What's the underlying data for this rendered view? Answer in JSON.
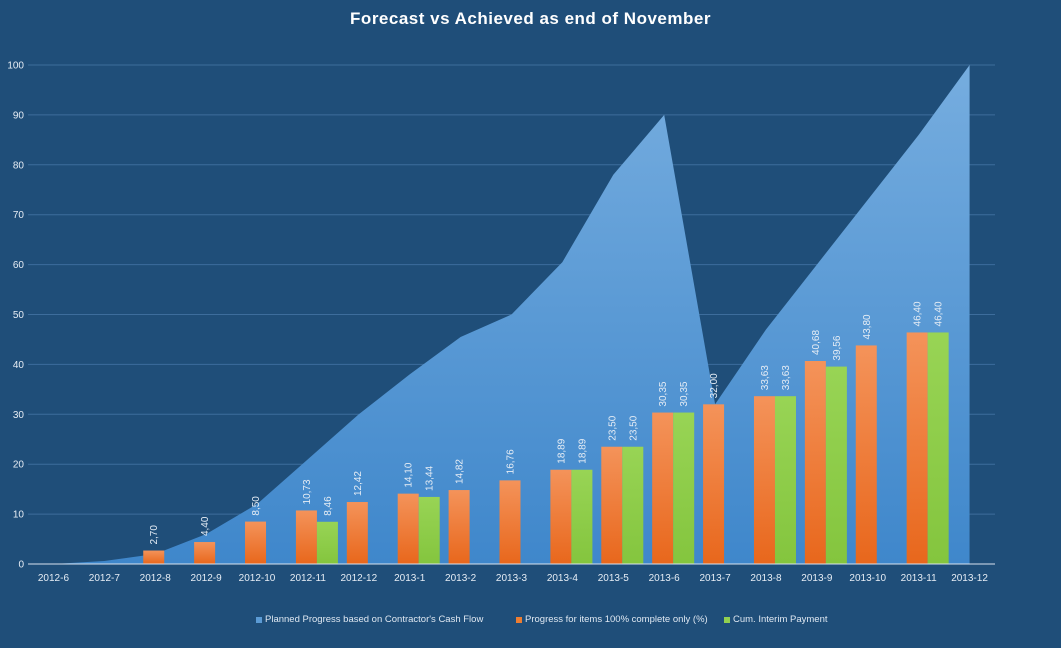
{
  "chart_data": {
    "type": "bar+area",
    "title": "Forecast vs Achieved as end of November",
    "xlabel": "",
    "ylabel": "",
    "ylim": [
      0,
      100
    ],
    "yticks": [
      0,
      10,
      20,
      30,
      40,
      50,
      60,
      70,
      80,
      90,
      100
    ],
    "grid": true,
    "legend_position": "bottom",
    "categories": [
      "2012-6",
      "2012-7",
      "2012-8",
      "2012-9",
      "2012-10",
      "2012-11",
      "2012-12",
      "2013-1",
      "2013-2",
      "2013-3",
      "2013-4",
      "2013-5",
      "2013-6",
      "2013-7",
      "2013-8",
      "2013-9",
      "2013-10",
      "2013-11",
      "2013-12"
    ],
    "series": [
      {
        "name": "Planned Progress based on Contractor's Cash Flow",
        "type": "area",
        "color": "#5b9bd5",
        "values": [
          0,
          0.6,
          2,
          6,
          12,
          21,
          30,
          38,
          45.5,
          50,
          60.5,
          78,
          90,
          32,
          47,
          60,
          73,
          86,
          100
        ]
      },
      {
        "name": "Progress for items 100% complete only (%)",
        "type": "bar",
        "color": "#ed7d31",
        "values": [
          null,
          null,
          2.7,
          4.4,
          8.5,
          10.73,
          12.42,
          14.1,
          14.82,
          16.76,
          18.89,
          23.5,
          30.35,
          32.0,
          33.63,
          40.68,
          43.8,
          46.4,
          null
        ],
        "labels": [
          null,
          null,
          "2,70",
          "4,40",
          "8,50",
          "10,73",
          "12,42",
          "14,10",
          "14,82",
          "16,76",
          "18,89",
          "23,50",
          "30,35",
          "32,00",
          "33,63",
          "40,68",
          "43,80",
          "46,40",
          null
        ]
      },
      {
        "name": "Cum. Interim Payment",
        "type": "bar",
        "color": "#92d050",
        "values": [
          null,
          null,
          null,
          null,
          null,
          8.46,
          null,
          13.44,
          null,
          null,
          18.89,
          23.5,
          30.35,
          null,
          33.63,
          39.56,
          null,
          46.4,
          null
        ],
        "labels": [
          null,
          null,
          null,
          null,
          null,
          "8,46",
          null,
          "13,44",
          null,
          null,
          "18,89",
          "23,50",
          "30,35",
          null,
          "33,63",
          "39,56",
          null,
          "46,40",
          null
        ]
      }
    ]
  }
}
